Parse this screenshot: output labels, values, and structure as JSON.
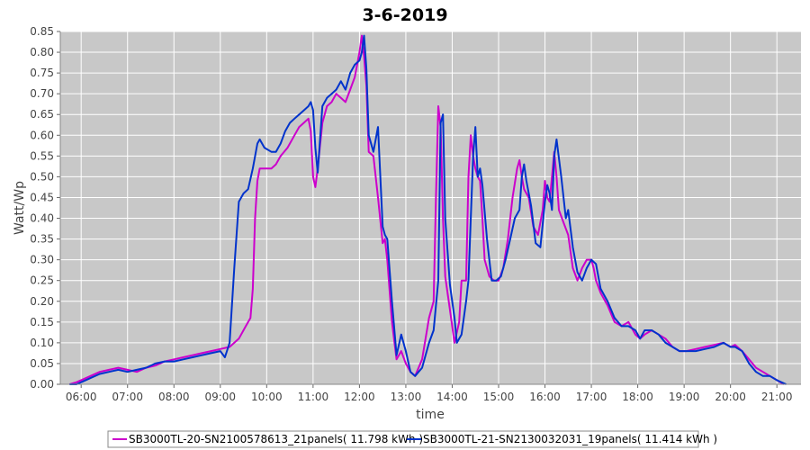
{
  "chart_data": {
    "type": "line",
    "title": "3-6-2019",
    "xlabel": "time",
    "ylabel": "Watt/Wp",
    "x_unit": "hour of day",
    "xlim": [
      5.55,
      21.52
    ],
    "ylim": [
      0,
      0.85
    ],
    "x_ticks": [
      {
        "value": 6,
        "label": "06:00"
      },
      {
        "value": 7,
        "label": "07:00"
      },
      {
        "value": 8,
        "label": "08:00"
      },
      {
        "value": 9,
        "label": "09:00"
      },
      {
        "value": 10,
        "label": "10:00"
      },
      {
        "value": 11,
        "label": "11:00"
      },
      {
        "value": 12,
        "label": "12:00"
      },
      {
        "value": 13,
        "label": "13:00"
      },
      {
        "value": 14,
        "label": "14:00"
      },
      {
        "value": 15,
        "label": "15:00"
      },
      {
        "value": 16,
        "label": "16:00"
      },
      {
        "value": 17,
        "label": "17:00"
      },
      {
        "value": 18,
        "label": "18:00"
      },
      {
        "value": 19,
        "label": "19:00"
      },
      {
        "value": 20,
        "label": "20:00"
      },
      {
        "value": 21,
        "label": "21:00"
      }
    ],
    "y_ticks": [
      {
        "value": 0.0,
        "label": "0.00"
      },
      {
        "value": 0.05,
        "label": "0.05"
      },
      {
        "value": 0.1,
        "label": "0.10"
      },
      {
        "value": 0.15,
        "label": "0.15"
      },
      {
        "value": 0.2,
        "label": "0.20"
      },
      {
        "value": 0.25,
        "label": "0.25"
      },
      {
        "value": 0.3,
        "label": "0.30"
      },
      {
        "value": 0.35,
        "label": "0.35"
      },
      {
        "value": 0.4,
        "label": "0.40"
      },
      {
        "value": 0.45,
        "label": "0.45"
      },
      {
        "value": 0.5,
        "label": "0.50"
      },
      {
        "value": 0.55,
        "label": "0.55"
      },
      {
        "value": 0.6,
        "label": "0.60"
      },
      {
        "value": 0.65,
        "label": "0.65"
      },
      {
        "value": 0.7,
        "label": "0.70"
      },
      {
        "value": 0.75,
        "label": "0.75"
      },
      {
        "value": 0.8,
        "label": "0.80"
      },
      {
        "value": 0.85,
        "label": "0.85"
      }
    ],
    "grid": true,
    "legend_position": "bottom",
    "background_color": "#c8c8c8",
    "series": [
      {
        "name": "SB3000TL-20-SN2100578613_21panels( 11.798 kWh )",
        "color": "#cc00cc",
        "points": [
          [
            5.75,
            0.0
          ],
          [
            5.9,
            0.005
          ],
          [
            6.0,
            0.01
          ],
          [
            6.2,
            0.02
          ],
          [
            6.4,
            0.03
          ],
          [
            6.6,
            0.035
          ],
          [
            6.8,
            0.04
          ],
          [
            7.0,
            0.035
          ],
          [
            7.2,
            0.03
          ],
          [
            7.4,
            0.04
          ],
          [
            7.6,
            0.045
          ],
          [
            7.8,
            0.055
          ],
          [
            8.0,
            0.06
          ],
          [
            8.2,
            0.065
          ],
          [
            8.4,
            0.07
          ],
          [
            8.6,
            0.075
          ],
          [
            8.8,
            0.08
          ],
          [
            9.0,
            0.085
          ],
          [
            9.2,
            0.09
          ],
          [
            9.4,
            0.11
          ],
          [
            9.55,
            0.14
          ],
          [
            9.65,
            0.16
          ],
          [
            9.7,
            0.23
          ],
          [
            9.75,
            0.4
          ],
          [
            9.8,
            0.49
          ],
          [
            9.85,
            0.52
          ],
          [
            10.0,
            0.52
          ],
          [
            10.1,
            0.52
          ],
          [
            10.2,
            0.53
          ],
          [
            10.3,
            0.55
          ],
          [
            10.45,
            0.57
          ],
          [
            10.6,
            0.6
          ],
          [
            10.7,
            0.62
          ],
          [
            10.8,
            0.63
          ],
          [
            10.9,
            0.64
          ],
          [
            10.95,
            0.61
          ],
          [
            11.0,
            0.5
          ],
          [
            11.05,
            0.475
          ],
          [
            11.1,
            0.52
          ],
          [
            11.2,
            0.63
          ],
          [
            11.3,
            0.67
          ],
          [
            11.4,
            0.68
          ],
          [
            11.5,
            0.7
          ],
          [
            11.6,
            0.69
          ],
          [
            11.7,
            0.68
          ],
          [
            11.8,
            0.71
          ],
          [
            11.9,
            0.74
          ],
          [
            11.95,
            0.77
          ],
          [
            12.0,
            0.8
          ],
          [
            12.05,
            0.84
          ],
          [
            12.1,
            0.79
          ],
          [
            12.15,
            0.72
          ],
          [
            12.2,
            0.56
          ],
          [
            12.3,
            0.55
          ],
          [
            12.4,
            0.45
          ],
          [
            12.5,
            0.34
          ],
          [
            12.55,
            0.35
          ],
          [
            12.6,
            0.3
          ],
          [
            12.7,
            0.15
          ],
          [
            12.8,
            0.06
          ],
          [
            12.9,
            0.08
          ],
          [
            13.0,
            0.05
          ],
          [
            13.1,
            0.03
          ],
          [
            13.2,
            0.02
          ],
          [
            13.35,
            0.06
          ],
          [
            13.5,
            0.16
          ],
          [
            13.6,
            0.2
          ],
          [
            13.65,
            0.45
          ],
          [
            13.7,
            0.67
          ],
          [
            13.75,
            0.62
          ],
          [
            13.8,
            0.4
          ],
          [
            13.85,
            0.26
          ],
          [
            13.95,
            0.18
          ],
          [
            14.05,
            0.1
          ],
          [
            14.15,
            0.15
          ],
          [
            14.2,
            0.25
          ],
          [
            14.3,
            0.25
          ],
          [
            14.35,
            0.5
          ],
          [
            14.4,
            0.6
          ],
          [
            14.45,
            0.55
          ],
          [
            14.5,
            0.52
          ],
          [
            14.55,
            0.5
          ],
          [
            14.6,
            0.49
          ],
          [
            14.65,
            0.4
          ],
          [
            14.7,
            0.3
          ],
          [
            14.8,
            0.26
          ],
          [
            14.9,
            0.25
          ],
          [
            15.0,
            0.25
          ],
          [
            15.1,
            0.28
          ],
          [
            15.2,
            0.35
          ],
          [
            15.3,
            0.45
          ],
          [
            15.4,
            0.52
          ],
          [
            15.45,
            0.54
          ],
          [
            15.5,
            0.5
          ],
          [
            15.55,
            0.47
          ],
          [
            15.65,
            0.45
          ],
          [
            15.75,
            0.38
          ],
          [
            15.85,
            0.36
          ],
          [
            15.95,
            0.42
          ],
          [
            16.0,
            0.49
          ],
          [
            16.05,
            0.45
          ],
          [
            16.1,
            0.44
          ],
          [
            16.15,
            0.5
          ],
          [
            16.2,
            0.56
          ],
          [
            16.25,
            0.5
          ],
          [
            16.3,
            0.42
          ],
          [
            16.4,
            0.39
          ],
          [
            16.5,
            0.36
          ],
          [
            16.6,
            0.28
          ],
          [
            16.7,
            0.25
          ],
          [
            16.8,
            0.28
          ],
          [
            16.9,
            0.3
          ],
          [
            17.0,
            0.3
          ],
          [
            17.05,
            0.28
          ],
          [
            17.1,
            0.25
          ],
          [
            17.2,
            0.22
          ],
          [
            17.35,
            0.19
          ],
          [
            17.5,
            0.15
          ],
          [
            17.65,
            0.14
          ],
          [
            17.8,
            0.15
          ],
          [
            17.95,
            0.12
          ],
          [
            18.05,
            0.11
          ],
          [
            18.15,
            0.12
          ],
          [
            18.3,
            0.13
          ],
          [
            18.45,
            0.12
          ],
          [
            18.6,
            0.11
          ],
          [
            18.75,
            0.09
          ],
          [
            18.9,
            0.08
          ],
          [
            19.05,
            0.08
          ],
          [
            19.25,
            0.085
          ],
          [
            19.45,
            0.09
          ],
          [
            19.65,
            0.095
          ],
          [
            19.85,
            0.1
          ],
          [
            20.0,
            0.09
          ],
          [
            20.1,
            0.095
          ],
          [
            20.25,
            0.08
          ],
          [
            20.4,
            0.06
          ],
          [
            20.55,
            0.04
          ],
          [
            20.7,
            0.03
          ],
          [
            20.85,
            0.02
          ],
          [
            21.0,
            0.01
          ],
          [
            21.15,
            0.0
          ]
        ]
      },
      {
        "name": "SB3000TL-21-SN2130032031_19panels( 11.414 kWh )",
        "color": "#0033cc",
        "points": [
          [
            5.75,
            0.0
          ],
          [
            5.9,
            0.0
          ],
          [
            6.0,
            0.005
          ],
          [
            6.2,
            0.015
          ],
          [
            6.4,
            0.025
          ],
          [
            6.6,
            0.03
          ],
          [
            6.8,
            0.035
          ],
          [
            7.0,
            0.03
          ],
          [
            7.2,
            0.035
          ],
          [
            7.4,
            0.04
          ],
          [
            7.6,
            0.05
          ],
          [
            7.8,
            0.055
          ],
          [
            8.0,
            0.055
          ],
          [
            8.2,
            0.06
          ],
          [
            8.4,
            0.065
          ],
          [
            8.6,
            0.07
          ],
          [
            8.8,
            0.075
          ],
          [
            9.0,
            0.08
          ],
          [
            9.1,
            0.065
          ],
          [
            9.2,
            0.1
          ],
          [
            9.3,
            0.28
          ],
          [
            9.4,
            0.44
          ],
          [
            9.5,
            0.46
          ],
          [
            9.6,
            0.47
          ],
          [
            9.7,
            0.52
          ],
          [
            9.8,
            0.58
          ],
          [
            9.85,
            0.59
          ],
          [
            9.95,
            0.57
          ],
          [
            10.1,
            0.56
          ],
          [
            10.2,
            0.56
          ],
          [
            10.3,
            0.58
          ],
          [
            10.4,
            0.61
          ],
          [
            10.5,
            0.63
          ],
          [
            10.6,
            0.64
          ],
          [
            10.7,
            0.65
          ],
          [
            10.8,
            0.66
          ],
          [
            10.9,
            0.67
          ],
          [
            10.95,
            0.68
          ],
          [
            11.0,
            0.66
          ],
          [
            11.05,
            0.57
          ],
          [
            11.1,
            0.51
          ],
          [
            11.2,
            0.67
          ],
          [
            11.3,
            0.69
          ],
          [
            11.4,
            0.7
          ],
          [
            11.5,
            0.71
          ],
          [
            11.6,
            0.73
          ],
          [
            11.7,
            0.71
          ],
          [
            11.8,
            0.75
          ],
          [
            11.9,
            0.77
          ],
          [
            12.0,
            0.78
          ],
          [
            12.05,
            0.8
          ],
          [
            12.1,
            0.84
          ],
          [
            12.15,
            0.76
          ],
          [
            12.2,
            0.6
          ],
          [
            12.3,
            0.56
          ],
          [
            12.4,
            0.62
          ],
          [
            12.5,
            0.38
          ],
          [
            12.55,
            0.36
          ],
          [
            12.6,
            0.35
          ],
          [
            12.7,
            0.2
          ],
          [
            12.8,
            0.07
          ],
          [
            12.9,
            0.12
          ],
          [
            13.0,
            0.08
          ],
          [
            13.1,
            0.03
          ],
          [
            13.2,
            0.02
          ],
          [
            13.35,
            0.04
          ],
          [
            13.5,
            0.1
          ],
          [
            13.6,
            0.13
          ],
          [
            13.7,
            0.25
          ],
          [
            13.75,
            0.63
          ],
          [
            13.8,
            0.65
          ],
          [
            13.85,
            0.4
          ],
          [
            13.95,
            0.24
          ],
          [
            14.05,
            0.16
          ],
          [
            14.1,
            0.1
          ],
          [
            14.2,
            0.12
          ],
          [
            14.3,
            0.2
          ],
          [
            14.35,
            0.25
          ],
          [
            14.45,
            0.55
          ],
          [
            14.5,
            0.62
          ],
          [
            14.55,
            0.5
          ],
          [
            14.6,
            0.52
          ],
          [
            14.65,
            0.48
          ],
          [
            14.75,
            0.35
          ],
          [
            14.85,
            0.25
          ],
          [
            14.95,
            0.25
          ],
          [
            15.05,
            0.26
          ],
          [
            15.15,
            0.3
          ],
          [
            15.25,
            0.35
          ],
          [
            15.35,
            0.4
          ],
          [
            15.45,
            0.42
          ],
          [
            15.5,
            0.5
          ],
          [
            15.55,
            0.53
          ],
          [
            15.6,
            0.49
          ],
          [
            15.7,
            0.43
          ],
          [
            15.8,
            0.34
          ],
          [
            15.9,
            0.33
          ],
          [
            16.0,
            0.44
          ],
          [
            16.05,
            0.48
          ],
          [
            16.1,
            0.46
          ],
          [
            16.15,
            0.42
          ],
          [
            16.2,
            0.55
          ],
          [
            16.25,
            0.59
          ],
          [
            16.35,
            0.5
          ],
          [
            16.45,
            0.4
          ],
          [
            16.5,
            0.42
          ],
          [
            16.6,
            0.33
          ],
          [
            16.7,
            0.27
          ],
          [
            16.8,
            0.25
          ],
          [
            16.9,
            0.28
          ],
          [
            17.0,
            0.3
          ],
          [
            17.1,
            0.29
          ],
          [
            17.2,
            0.23
          ],
          [
            17.35,
            0.2
          ],
          [
            17.5,
            0.16
          ],
          [
            17.65,
            0.14
          ],
          [
            17.8,
            0.14
          ],
          [
            17.95,
            0.13
          ],
          [
            18.05,
            0.11
          ],
          [
            18.15,
            0.13
          ],
          [
            18.3,
            0.13
          ],
          [
            18.45,
            0.12
          ],
          [
            18.6,
            0.1
          ],
          [
            18.75,
            0.09
          ],
          [
            18.9,
            0.08
          ],
          [
            19.05,
            0.08
          ],
          [
            19.25,
            0.08
          ],
          [
            19.45,
            0.085
          ],
          [
            19.65,
            0.09
          ],
          [
            19.85,
            0.1
          ],
          [
            20.0,
            0.09
          ],
          [
            20.1,
            0.09
          ],
          [
            20.25,
            0.08
          ],
          [
            20.4,
            0.05
          ],
          [
            20.55,
            0.03
          ],
          [
            20.7,
            0.02
          ],
          [
            20.85,
            0.02
          ],
          [
            21.0,
            0.01
          ],
          [
            21.2,
            0.0
          ]
        ]
      }
    ]
  }
}
